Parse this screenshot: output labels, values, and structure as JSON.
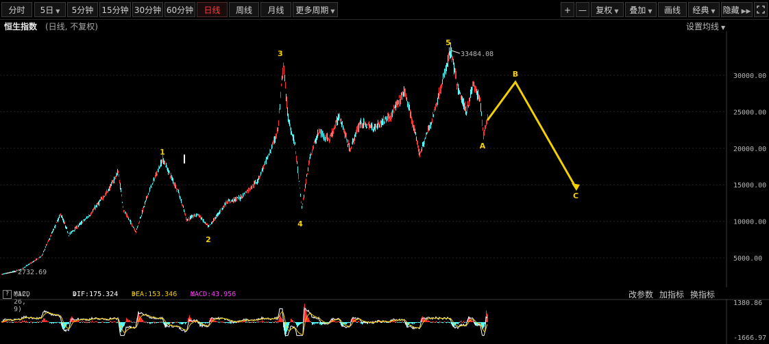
{
  "toolbar": {
    "tabs": [
      {
        "label": "分时",
        "caret": false,
        "active": false
      },
      {
        "label": "5日",
        "caret": true,
        "active": false
      },
      {
        "label": "5分钟",
        "caret": false,
        "active": false
      },
      {
        "label": "15分钟",
        "caret": false,
        "active": false
      },
      {
        "label": "30分钟",
        "caret": false,
        "active": false
      },
      {
        "label": "60分钟",
        "caret": false,
        "active": false
      },
      {
        "label": "日线",
        "caret": false,
        "active": true
      },
      {
        "label": "周线",
        "caret": false,
        "active": false
      },
      {
        "label": "月线",
        "caret": false,
        "active": false
      },
      {
        "label": "更多周期",
        "caret": true,
        "active": false
      }
    ],
    "right": {
      "zoom_in": "+",
      "zoom_out": "—",
      "restore": "复权",
      "overlay": "叠加",
      "draw": "画线",
      "classic": "经典",
      "hide": "隐藏",
      "fullscreen_icon": "expand-icon"
    }
  },
  "header": {
    "index_name": "恒生指数",
    "mode": "(日线, 不复权)",
    "ma_settings": "设置均线"
  },
  "price_axis": [
    "30000.00",
    "25000.00",
    "20000.00",
    "15000.00",
    "10000.00",
    "5000.00"
  ],
  "annotations": {
    "max_label": "33484.08",
    "min_label": "2732.69"
  },
  "waves": [
    "1",
    "2",
    "3",
    "4",
    "5",
    "A",
    "B",
    "C"
  ],
  "indicator": {
    "name": "MACD",
    "params": "(12, 26, 9)",
    "dif": "DIF:175.324",
    "dea": "DEA:153.346",
    "macd": "MACD:43.956",
    "help": "?",
    "modify": "改参数",
    "add": "加指标",
    "switch": "换指标",
    "axis_top": "1380.86",
    "axis_bottom": "-1666.97"
  },
  "colors": {
    "up": "#ff3232",
    "down": "#54ffff",
    "wave": "#f5d000",
    "dif": "#ffffff",
    "dea": "#f5d000",
    "macd": "#ff3cff"
  }
}
